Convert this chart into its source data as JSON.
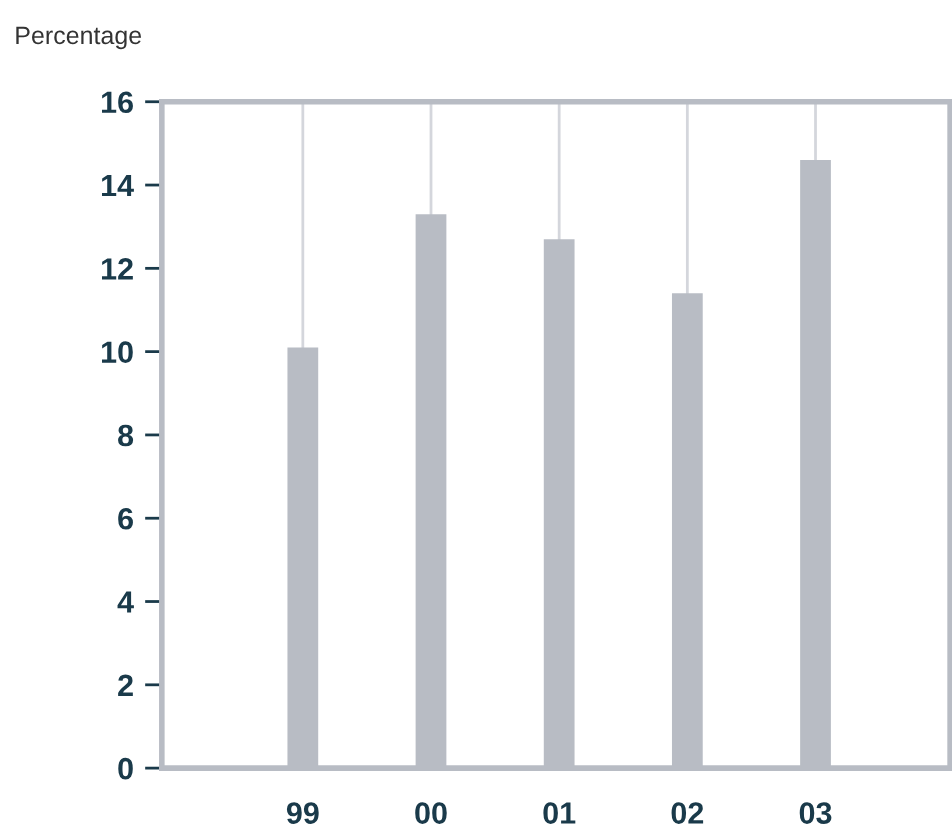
{
  "chart_data": {
    "type": "bar",
    "ylabel": "Percentage",
    "categories": [
      "99",
      "00",
      "01",
      "02",
      "03"
    ],
    "values": [
      10.1,
      13.3,
      12.7,
      11.4,
      14.6
    ],
    "color": "#b8bcc4",
    "ylim": [
      0,
      16
    ],
    "yticks": [
      0,
      2,
      4,
      6,
      8,
      10,
      12,
      14,
      16
    ],
    "grid": "x",
    "legend": false
  }
}
